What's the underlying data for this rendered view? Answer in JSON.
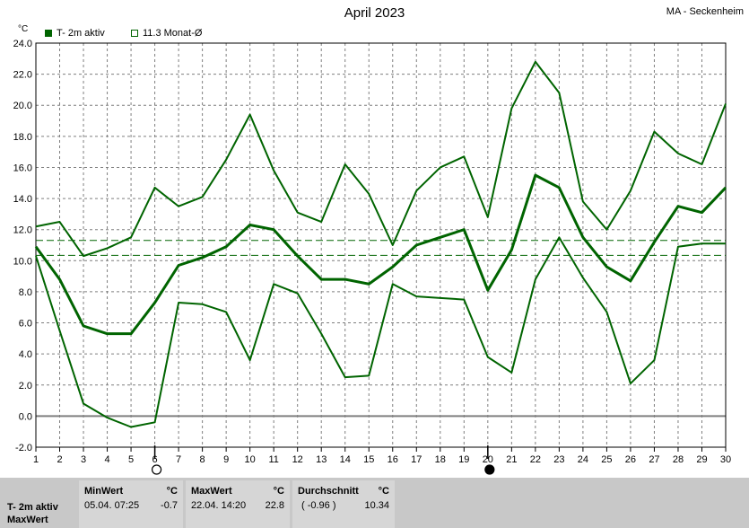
{
  "header": {
    "title": "April 2023",
    "station": "MA - Seckenheim"
  },
  "legend": {
    "series_label": "T- 2m aktiv",
    "mean_label": "11.3 Monat-Ø"
  },
  "colors": {
    "series": "#006400",
    "grid": "#7f7f7f",
    "zero_line": "#7f7f7f"
  },
  "chart_data": {
    "type": "line",
    "unit_label": "°C",
    "x": [
      1,
      2,
      3,
      4,
      5,
      6,
      7,
      8,
      9,
      10,
      11,
      12,
      13,
      14,
      15,
      16,
      17,
      18,
      19,
      20,
      21,
      22,
      23,
      24,
      25,
      26,
      27,
      28,
      29,
      30
    ],
    "xlim": [
      1,
      30
    ],
    "ylim": [
      -2,
      24
    ],
    "yticks": [
      "-2.0",
      "0.0",
      "2.0",
      "4.0",
      "6.0",
      "8.0",
      "10.0",
      "12.0",
      "14.0",
      "16.0",
      "18.0",
      "20.0",
      "22.0",
      "24.0"
    ],
    "grid": true,
    "series": [
      {
        "role": "max",
        "values": [
          12.2,
          12.5,
          10.3,
          10.8,
          11.5,
          14.7,
          13.5,
          14.1,
          16.5,
          19.4,
          15.8,
          13.1,
          12.5,
          16.2,
          14.3,
          11.0,
          14.5,
          16.0,
          16.7,
          12.8,
          19.8,
          22.8,
          20.8,
          13.8,
          12.0,
          14.5,
          18.3,
          16.9,
          16.2,
          20.1
        ]
      },
      {
        "role": "mean",
        "values": [
          10.9,
          8.8,
          5.8,
          5.3,
          5.3,
          7.3,
          9.7,
          10.2,
          10.9,
          12.3,
          12.0,
          10.3,
          8.8,
          8.8,
          8.5,
          9.6,
          11.0,
          11.5,
          12.0,
          8.1,
          10.7,
          15.5,
          14.7,
          11.5,
          9.6,
          8.7,
          11.2,
          13.5,
          13.1,
          14.7
        ]
      },
      {
        "role": "min",
        "values": [
          10.3,
          5.5,
          0.8,
          -0.1,
          -0.7,
          -0.4,
          7.3,
          7.2,
          6.7,
          3.6,
          8.5,
          7.9,
          5.3,
          2.5,
          2.6,
          8.5,
          7.7,
          7.6,
          7.5,
          3.8,
          2.8,
          8.8,
          11.5,
          8.9,
          6.7,
          2.1,
          3.6,
          10.9,
          11.1,
          11.1
        ]
      }
    ],
    "reference_lines": [
      11.3,
      10.34
    ],
    "moon_phases": [
      {
        "day": 6,
        "phase": "full-moon"
      },
      {
        "day": 20,
        "phase": "new-moon"
      }
    ]
  },
  "stats": {
    "row_title_1": "T- 2m aktiv",
    "row_title_2": "MaxWert",
    "min": {
      "label": "MinWert",
      "unit": "°C",
      "time": "05.04.  07:25",
      "value": "-0.7"
    },
    "max": {
      "label": "MaxWert",
      "unit": "°C",
      "time": "22.04.  14:20",
      "value": "22.8"
    },
    "avg": {
      "label": "Durchschnitt",
      "unit": "°C",
      "note": "( -0.96 )",
      "value": "10.34"
    }
  }
}
